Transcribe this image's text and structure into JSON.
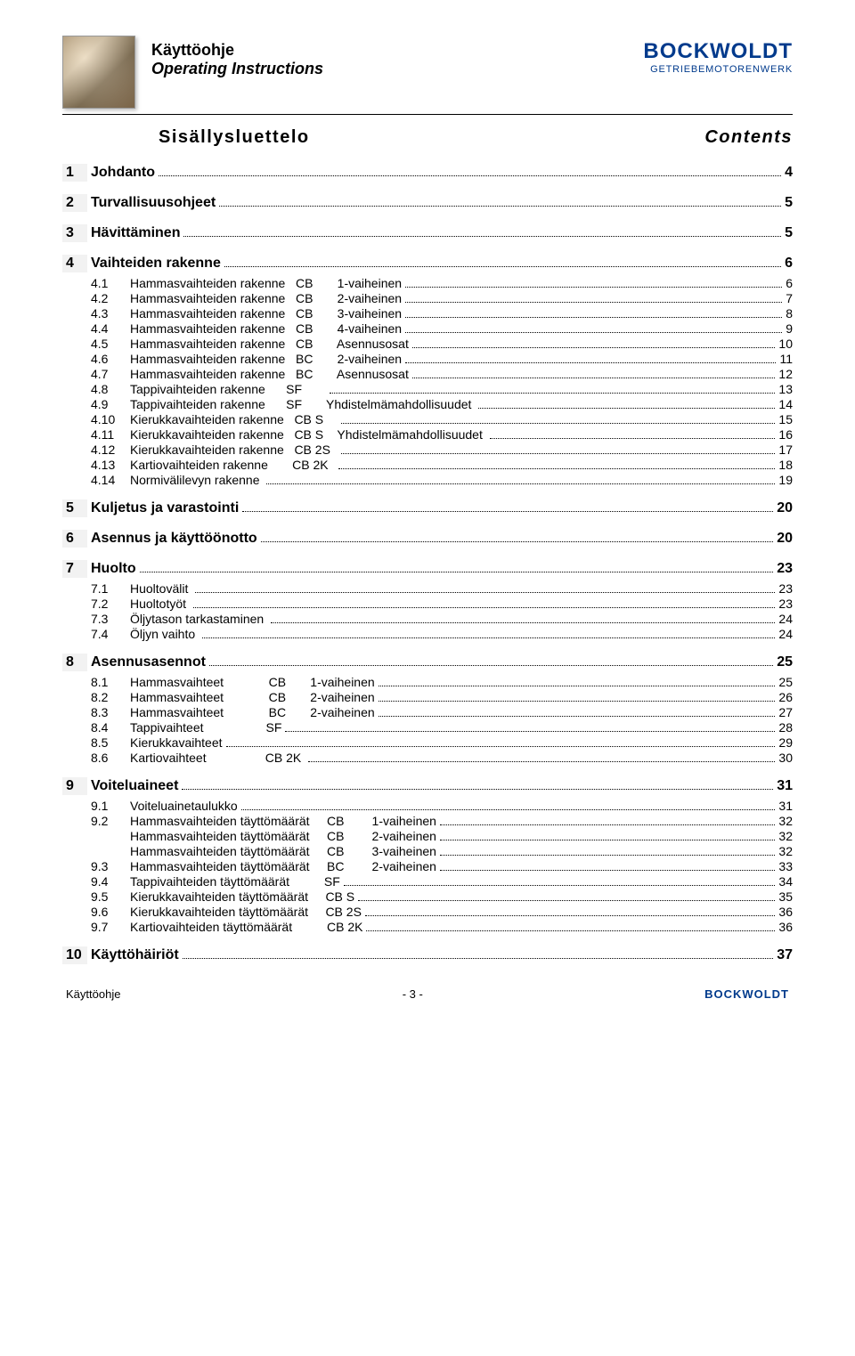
{
  "header": {
    "title": "Käyttöohje",
    "subtitle": "Operating Instructions",
    "brand": "BOCKWOLDT",
    "brand_tagline": "GETRIEBEMOTORENWERK"
  },
  "section_heading": {
    "left": "Sisällysluettelo",
    "right": "Contents"
  },
  "toc": [
    {
      "num": "1",
      "label": "Johdanto",
      "page": "4",
      "items": []
    },
    {
      "num": "2",
      "label": "Turvallisuusohjeet",
      "page": "5",
      "items": []
    },
    {
      "num": "3",
      "label": "Hävittäminen",
      "page": "5",
      "items": []
    },
    {
      "num": "4",
      "label": "Vaihteiden rakenne",
      "page": "6",
      "items": [
        {
          "num": "4.1",
          "label": "Hammasvaihteiden rakenne   CB       1-vaiheinen",
          "page": "6"
        },
        {
          "num": "4.2",
          "label": "Hammasvaihteiden rakenne   CB       2-vaiheinen",
          "page": "7"
        },
        {
          "num": "4.3",
          "label": "Hammasvaihteiden rakenne   CB       3-vaiheinen",
          "page": "8"
        },
        {
          "num": "4.4",
          "label": "Hammasvaihteiden rakenne   CB       4-vaiheinen",
          "page": "9"
        },
        {
          "num": "4.5",
          "label": "Hammasvaihteiden rakenne   CB       Asennusosat",
          "page": "10"
        },
        {
          "num": "4.6",
          "label": "Hammasvaihteiden rakenne   BC       2-vaiheinen",
          "page": "11"
        },
        {
          "num": "4.7",
          "label": "Hammasvaihteiden rakenne   BC       Asennusosat",
          "page": "12"
        },
        {
          "num": "4.8",
          "label": "Tappivaihteiden rakenne      SF       ",
          "page": "13"
        },
        {
          "num": "4.9",
          "label": "Tappivaihteiden rakenne      SF       Yhdistelmämahdollisuudet ",
          "page": "14"
        },
        {
          "num": "4.10",
          "label": "Kierukkavaihteiden rakenne   CB S    ",
          "page": "15"
        },
        {
          "num": "4.11",
          "label": "Kierukkavaihteiden rakenne   CB S    Yhdistelmämahdollisuudet ",
          "page": "16"
        },
        {
          "num": "4.12",
          "label": "Kierukkavaihteiden rakenne   CB 2S  ",
          "page": "17"
        },
        {
          "num": "4.13",
          "label": "Kartiovaihteiden rakenne       CB 2K  ",
          "page": "18"
        },
        {
          "num": "4.14",
          "label": "Normivälilevyn rakenne ",
          "page": "19"
        }
      ]
    },
    {
      "num": "5",
      "label": "Kuljetus ja varastointi",
      "page": "20",
      "items": []
    },
    {
      "num": "6",
      "label": "Asennus ja käyttöönotto",
      "page": "20",
      "items": []
    },
    {
      "num": "7",
      "label": "Huolto",
      "page": "23",
      "items": [
        {
          "num": "7.1",
          "label": "Huoltovälit ",
          "page": "23"
        },
        {
          "num": "7.2",
          "label": "Huoltotyöt ",
          "page": "23"
        },
        {
          "num": "7.3",
          "label": "Öljytason tarkastaminen ",
          "page": "24"
        },
        {
          "num": "7.4",
          "label": "Öljyn vaihto ",
          "page": "24"
        }
      ]
    },
    {
      "num": "8",
      "label": "Asennusasennot",
      "page": "25",
      "items": [
        {
          "num": "8.1",
          "label": "Hammasvaihteet             CB       1-vaiheinen",
          "page": "25"
        },
        {
          "num": "8.2",
          "label": "Hammasvaihteet             CB       2-vaiheinen",
          "page": "26"
        },
        {
          "num": "8.3",
          "label": "Hammasvaihteet             BC       2-vaiheinen",
          "page": "27"
        },
        {
          "num": "8.4",
          "label": "Tappivaihteet                  SF",
          "page": "28"
        },
        {
          "num": "8.5",
          "label": "Kierukkavaihteet",
          "page": "29"
        },
        {
          "num": "8.6",
          "label": "Kartiovaihteet                 CB 2K ",
          "page": "30"
        }
      ]
    },
    {
      "num": "9",
      "label": "Voiteluaineet",
      "page": "31",
      "items": [
        {
          "num": "9.1",
          "label": "Voiteluainetaulukko",
          "page": "31"
        },
        {
          "num": "9.2",
          "label": "Hammasvaihteiden täyttömäärät     CB        1-vaiheinen",
          "page": "32"
        },
        {
          "num": "",
          "label": "Hammasvaihteiden täyttömäärät     CB        2-vaiheinen",
          "page": "32"
        },
        {
          "num": "",
          "label": "Hammasvaihteiden täyttömäärät     CB        3-vaiheinen",
          "page": "32"
        },
        {
          "num": "9.3",
          "label": "Hammasvaihteiden täyttömäärät     BC        2-vaiheinen",
          "page": "33"
        },
        {
          "num": "9.4",
          "label": "Tappivaihteiden täyttömäärät          SF",
          "page": "34"
        },
        {
          "num": "9.5",
          "label": "Kierukkavaihteiden täyttömäärät     CB S",
          "page": "35"
        },
        {
          "num": "9.6",
          "label": "Kierukkavaihteiden täyttömäärät     CB 2S",
          "page": "36"
        },
        {
          "num": "9.7",
          "label": "Kartiovaihteiden täyttömäärät          CB 2K",
          "page": "36"
        }
      ]
    },
    {
      "num": "10",
      "label": "Käyttöhäiriöt",
      "page": "37",
      "items": []
    }
  ],
  "footer": {
    "left": "Käyttöohje",
    "center": "- 3 -",
    "right": "BOCKWOLDT"
  },
  "colors": {
    "brand": "#003a8c",
    "text": "#000000",
    "shade": "#f2f2f2"
  }
}
